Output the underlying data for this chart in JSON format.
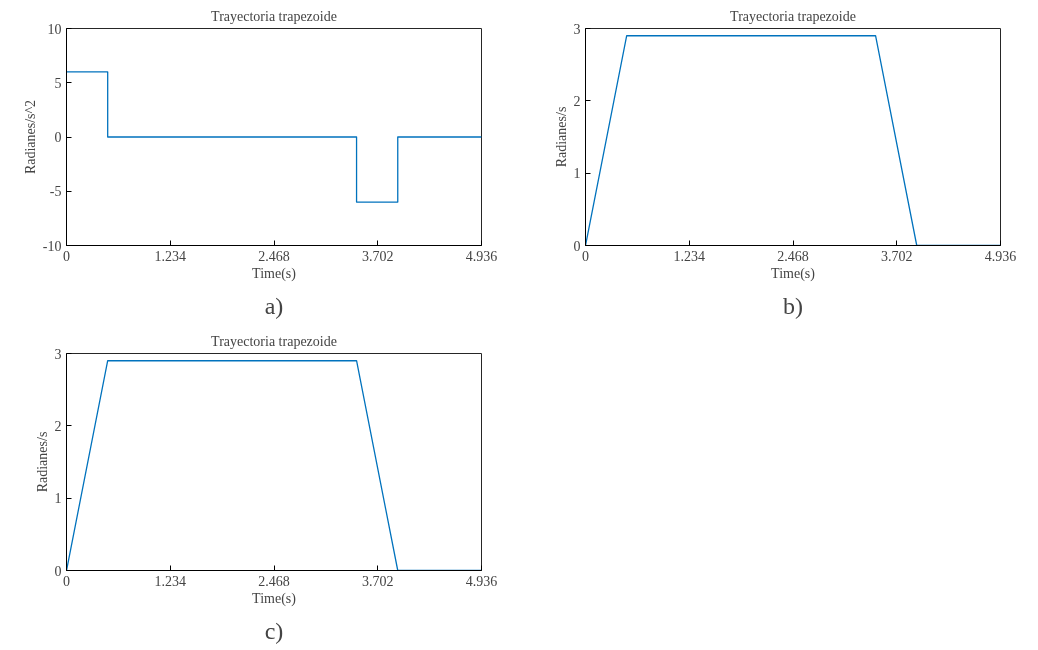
{
  "chart_data": [
    {
      "type": "line",
      "title": "Trayectoria trapezoide",
      "xlabel": "Time(s)",
      "ylabel": "Radianes/s^2",
      "annotations": [
        "a)"
      ],
      "series": [
        {
          "color": "#0072bd",
          "x": [
            0,
            0.49,
            0.49,
            3.45,
            3.45,
            3.94,
            3.94,
            4.936
          ],
          "values": [
            6,
            6,
            0,
            0,
            -6,
            -6,
            0,
            0
          ]
        }
      ],
      "xlim": [
        0,
        4.936
      ],
      "ylim": [
        -10,
        10
      ],
      "xticks": [
        0,
        1.234,
        2.468,
        3.702,
        4.936
      ],
      "yticks": [
        -10,
        -5,
        0,
        5,
        10
      ],
      "grid": false
    },
    {
      "type": "line",
      "title": "Trayectoria trapezoide",
      "xlabel": "Time(s)",
      "ylabel": "Radianes/s",
      "annotations": [
        "b)"
      ],
      "series": [
        {
          "color": "#0072bd",
          "x": [
            0,
            0.49,
            3.45,
            3.94,
            4.936
          ],
          "values": [
            0,
            2.9,
            2.9,
            0,
            0
          ]
        }
      ],
      "xlim": [
        0,
        4.936
      ],
      "ylim": [
        0,
        3
      ],
      "xticks": [
        0,
        1.234,
        2.468,
        3.702,
        4.936
      ],
      "yticks": [
        0,
        1,
        2,
        3
      ],
      "grid": false
    },
    {
      "type": "line",
      "title": "Trayectoria trapezoide",
      "xlabel": "Time(s)",
      "ylabel": "Radianes/s",
      "annotations": [
        "c)"
      ],
      "series": [
        {
          "color": "#0072bd",
          "x": [
            0,
            0.49,
            3.45,
            3.94,
            4.936
          ],
          "values": [
            0,
            2.9,
            2.9,
            0,
            0
          ]
        }
      ],
      "xlim": [
        0,
        4.936
      ],
      "ylim": [
        0,
        3
      ],
      "xticks": [
        0,
        1.234,
        2.468,
        3.702,
        4.936
      ],
      "yticks": [
        0,
        1,
        2,
        3
      ],
      "grid": false
    }
  ]
}
